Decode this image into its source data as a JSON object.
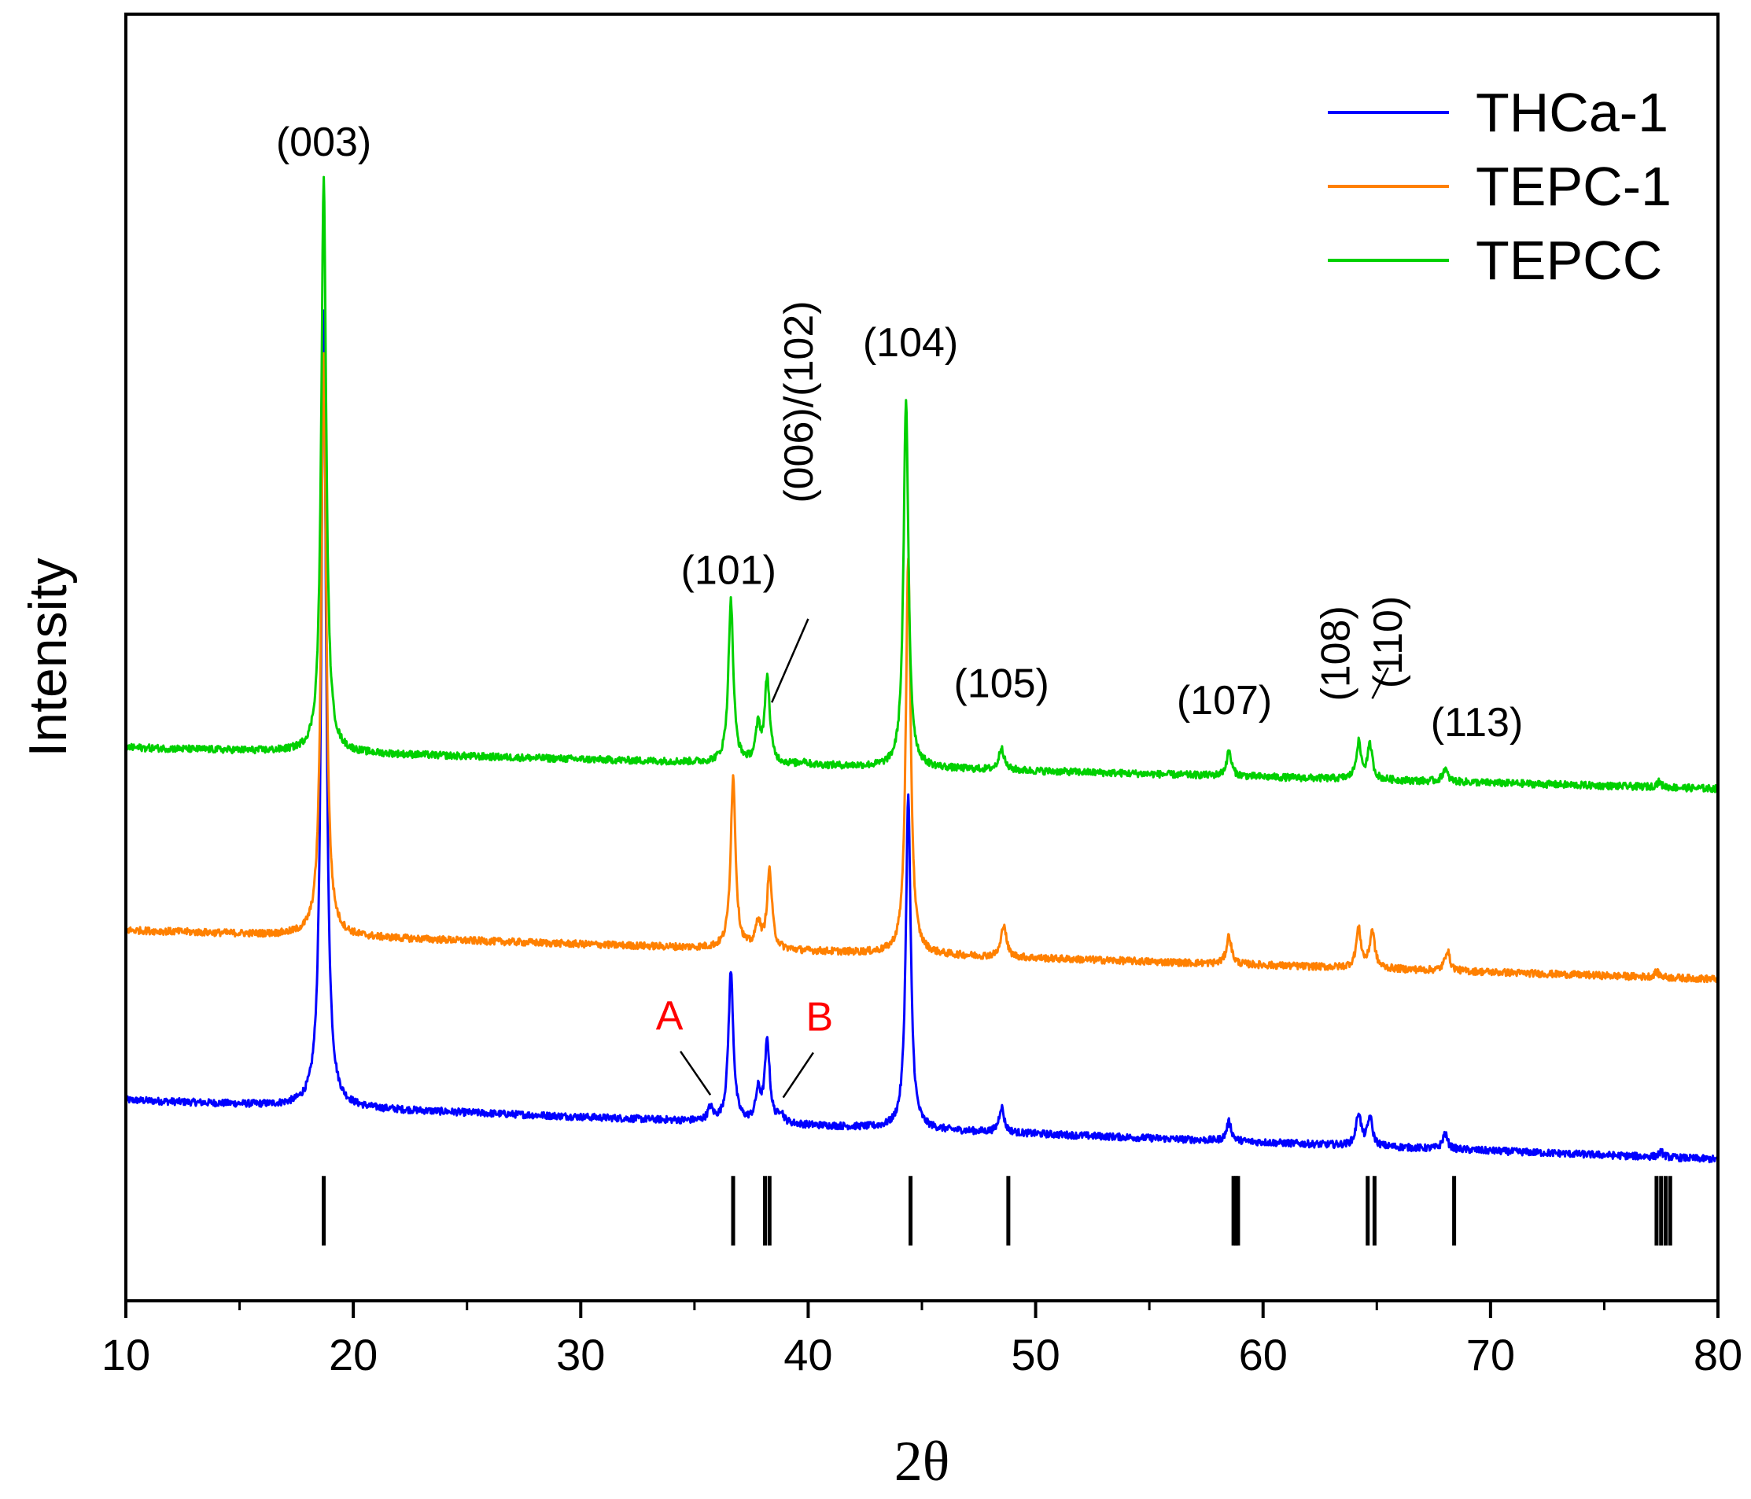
{
  "chart_data": {
    "type": "line",
    "title": "",
    "xlabel": "2θ",
    "ylabel": "Intensity",
    "xlim": [
      10,
      80
    ],
    "ylim": [
      0,
      100
    ],
    "y_tick_labels_shown": false,
    "grid": false,
    "legend_position": "top-right",
    "x_ticks": [
      "10",
      "20",
      "30",
      "40",
      "50",
      "60",
      "70",
      "80"
    ],
    "series": [
      {
        "name": "THCa-1",
        "color": "#0000ff",
        "baseline_start": 15.6,
        "baseline_end": 11.0,
        "peaks": [
          {
            "x": 18.7,
            "height": 62.0
          },
          {
            "x": 35.7,
            "height": 1.0
          },
          {
            "x": 36.6,
            "height": 11.7
          },
          {
            "x": 37.8,
            "height": 2.3
          },
          {
            "x": 38.2,
            "height": 6.3
          },
          {
            "x": 38.8,
            "height": 0.8
          },
          {
            "x": 44.4,
            "height": 25.8
          },
          {
            "x": 48.5,
            "height": 2.0
          },
          {
            "x": 58.5,
            "height": 1.5
          },
          {
            "x": 64.2,
            "height": 2.5
          },
          {
            "x": 64.7,
            "height": 2.2
          },
          {
            "x": 68.0,
            "height": 1.2
          },
          {
            "x": 77.5,
            "height": 0.4
          }
        ]
      },
      {
        "name": "TEPC-1",
        "color": "#ff8000",
        "baseline_start": 28.8,
        "baseline_end": 25.0,
        "peaks": [
          {
            "x": 18.7,
            "height": 45.5
          },
          {
            "x": 36.7,
            "height": 13.3
          },
          {
            "x": 37.8,
            "height": 2.0
          },
          {
            "x": 38.3,
            "height": 6.1
          },
          {
            "x": 44.4,
            "height": 30.5
          },
          {
            "x": 48.6,
            "height": 2.6
          },
          {
            "x": 58.5,
            "height": 2.2
          },
          {
            "x": 64.2,
            "height": 3.0
          },
          {
            "x": 64.8,
            "height": 2.9
          },
          {
            "x": 68.1,
            "height": 1.6
          },
          {
            "x": 77.3,
            "height": 0.4
          }
        ]
      },
      {
        "name": "TEPCC",
        "color": "#00d000",
        "baseline_start": 43.0,
        "baseline_end": 39.8,
        "peaks": [
          {
            "x": 18.7,
            "height": 44.5
          },
          {
            "x": 36.6,
            "height": 12.6
          },
          {
            "x": 37.8,
            "height": 2.7
          },
          {
            "x": 38.2,
            "height": 6.6
          },
          {
            "x": 39.8,
            "height": 0.3
          },
          {
            "x": 44.3,
            "height": 28.4
          },
          {
            "x": 48.5,
            "height": 1.8
          },
          {
            "x": 58.5,
            "height": 1.9
          },
          {
            "x": 64.2,
            "height": 2.8
          },
          {
            "x": 64.7,
            "height": 2.6
          },
          {
            "x": 68.0,
            "height": 1.0
          },
          {
            "x": 77.4,
            "height": 0.4
          }
        ]
      }
    ],
    "reference_lines_x": [
      18.7,
      36.7,
      38.1,
      38.3,
      44.5,
      48.8,
      58.7,
      58.8,
      58.9,
      64.6,
      64.9,
      68.4,
      77.3,
      77.5,
      77.7,
      77.9
    ],
    "peak_labels": [
      {
        "text": "(003)",
        "x": 18.7,
        "y": 89.0,
        "rotated": false
      },
      {
        "text": "(101)",
        "x": 36.5,
        "y": 55.7,
        "rotated": false
      },
      {
        "text": "(006)/(102)",
        "x": 40.2,
        "y": 62.0,
        "rotated": true
      },
      {
        "text": "(104)",
        "x": 44.5,
        "y": 73.4,
        "rotated": false
      },
      {
        "text": "(105)",
        "x": 48.5,
        "y": 46.9,
        "rotated": false
      },
      {
        "text": "(107)",
        "x": 58.3,
        "y": 45.6,
        "rotated": false
      },
      {
        "text": "(108)",
        "x": 63.8,
        "y": 46.6,
        "rotated": true
      },
      {
        "text": "(110)",
        "x": 66.1,
        "y": 47.6,
        "rotated": true
      },
      {
        "text": "(113)",
        "x": 69.4,
        "y": 43.9,
        "rotated": false
      }
    ],
    "annotations": [
      {
        "text": "A",
        "x": 33.9,
        "y": 21.1,
        "color": "#ff0000",
        "arrow_to": [
          35.7,
          16.0
        ]
      },
      {
        "text": "B",
        "x": 40.5,
        "y": 21.0,
        "color": "#ff0000",
        "arrow_to": [
          38.9,
          15.8
        ]
      }
    ],
    "leader_lines": [
      {
        "from": [
          38.4,
          46.5
        ],
        "to": [
          40.0,
          53.0
        ]
      },
      {
        "from": [
          64.8,
          46.8
        ],
        "to": [
          65.5,
          49.2
        ]
      }
    ]
  }
}
